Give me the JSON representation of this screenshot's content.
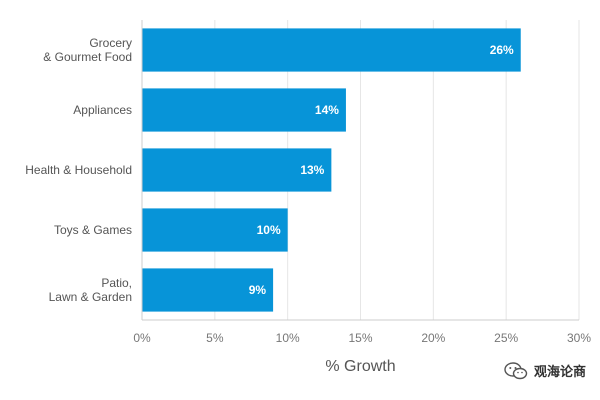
{
  "chart_data": {
    "type": "bar",
    "orientation": "horizontal",
    "categories": [
      [
        "Grocery",
        "& Gourmet Food"
      ],
      [
        "Appliances"
      ],
      [
        "Health & Household"
      ],
      [
        "Toys & Games"
      ],
      [
        "Patio,",
        "Lawn & Garden"
      ]
    ],
    "values": [
      26,
      14,
      13,
      10,
      9
    ],
    "data_labels": [
      "26%",
      "14%",
      "13%",
      "10%",
      "9%"
    ],
    "xlabel": "% Growth",
    "ylabel": "",
    "xlim": [
      0,
      30
    ],
    "x_ticks": [
      0,
      5,
      10,
      15,
      20,
      25,
      30
    ],
    "x_tick_labels": [
      "0%",
      "5%",
      "10%",
      "15%",
      "20%",
      "25%",
      "30%"
    ],
    "grid": "vertical",
    "bar_color": "#0794D8",
    "grid_color": "#E6E6E6",
    "axis_color": "#CCCCCC"
  },
  "watermark": {
    "icon": "wechat-icon",
    "text": "观海论商"
  }
}
